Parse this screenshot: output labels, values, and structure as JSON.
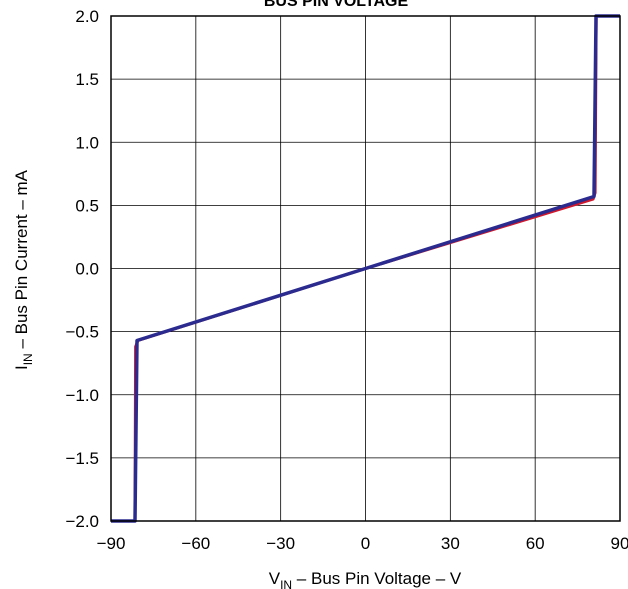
{
  "chart_data": {
    "type": "line",
    "title": "BUS PIN VOLTAGE",
    "xlabel": {
      "main": "V",
      "sub": "IN",
      "rest": " – Bus Pin Voltage – V"
    },
    "ylabel": {
      "main": "I",
      "sub": "IN",
      "rest": " – Bus Pin Current – mA"
    },
    "xlim": [
      -90,
      90
    ],
    "ylim": [
      -2.0,
      2.0
    ],
    "x_ticks": [
      -90,
      -60,
      -30,
      0,
      30,
      60,
      90
    ],
    "x_tick_labels": [
      "−90",
      "−60",
      "−30",
      "0",
      "30",
      "60",
      "90"
    ],
    "y_ticks": [
      2.0,
      1.5,
      1.0,
      0.5,
      0.0,
      -0.5,
      -1.0,
      -1.5,
      -2.0
    ],
    "y_tick_labels": [
      "2.0",
      "1.5",
      "1.0",
      "0.5",
      "0.0",
      "−0.5",
      "−1.0",
      "−1.5",
      "−2.0"
    ],
    "grid": true,
    "series": [
      {
        "color": "#d0182c",
        "x": [
          -90,
          -81.5,
          -81.3,
          -80.5,
          0,
          80.5,
          81.2,
          81.6,
          90
        ],
        "y": [
          -2.0,
          -2.0,
          -0.62,
          -0.57,
          0.0,
          0.55,
          0.6,
          2.0,
          2.0
        ]
      },
      {
        "color": "#2b2b8f",
        "x": [
          -90,
          -81.5,
          -80.8,
          0,
          80.8,
          81.5,
          90
        ],
        "y": [
          -2.0,
          -2.0,
          -0.57,
          0.0,
          0.57,
          2.0,
          2.0
        ]
      }
    ]
  }
}
